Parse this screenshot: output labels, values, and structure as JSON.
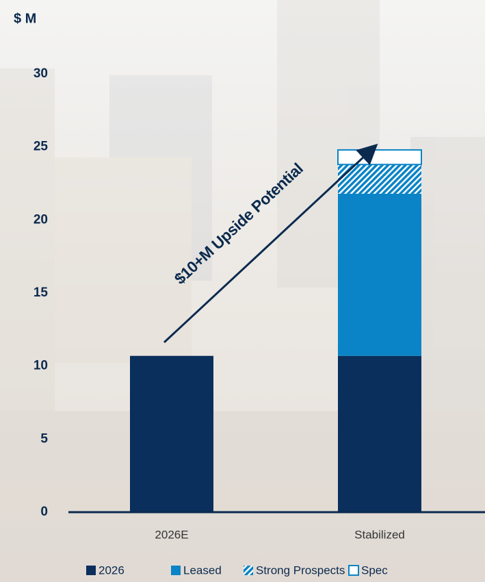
{
  "chart_data": {
    "type": "stacked-bar",
    "y_label": "$ M",
    "categories": [
      "2026E",
      "Stabilized"
    ],
    "series": [
      {
        "name": "2026",
        "color": "#0a2f5c",
        "pattern": "solid",
        "values": [
          10.7,
          10.7
        ]
      },
      {
        "name": "Leased",
        "color": "#0a84c6",
        "pattern": "solid",
        "values": [
          0,
          11.1
        ]
      },
      {
        "name": "Strong Prospects",
        "color": "#0a84c6",
        "pattern": "hatch",
        "values": [
          0,
          2.0
        ]
      },
      {
        "name": "Spec",
        "color": "#0a84c6",
        "pattern": "outline",
        "values": [
          0,
          1.0
        ]
      }
    ],
    "ylim": [
      0,
      30
    ],
    "yticks": [
      0,
      5,
      10,
      15,
      20,
      25,
      30
    ],
    "grid": false,
    "annotation": "$10+M Upside Potential",
    "legend": "bottom"
  }
}
